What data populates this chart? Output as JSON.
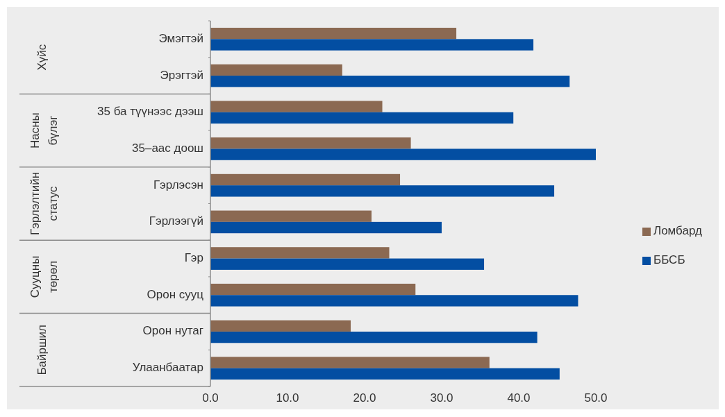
{
  "chart_data": {
    "type": "bar",
    "orientation": "horizontal",
    "categories": [
      "Эмэгтэй",
      "Эрэгтэй",
      "35 ба түүнээс дээш",
      "35–аас доош",
      "Гэрлэсэн",
      "Гэрлээгүй",
      "Гэр",
      "Орон сууц",
      "Орон нутаг",
      "Улаанбаатар"
    ],
    "series": [
      {
        "name": "Ломбард",
        "color": "#8b6952",
        "values": [
          31.9,
          17.1,
          22.3,
          26.0,
          24.6,
          20.9,
          23.2,
          26.6,
          18.2,
          36.2
        ]
      },
      {
        "name": "ББСБ",
        "color": "#034ea2",
        "values": [
          41.9,
          46.6,
          39.3,
          50.0,
          44.6,
          30.0,
          35.5,
          47.7,
          42.4,
          45.3
        ]
      }
    ],
    "annotations": [
      "Хүйс",
      "Насны бүлэг",
      "Гэрлэлтийн статус",
      "Сууцны төрөл",
      "Байршил"
    ],
    "xlim": [
      0,
      50
    ],
    "xticks": [
      {
        "value": 0,
        "label": "0.0"
      },
      {
        "value": 10,
        "label": "10.0"
      },
      {
        "value": 20,
        "label": "20.0"
      },
      {
        "value": 30,
        "label": "30.0"
      },
      {
        "value": 40,
        "label": "40.0"
      },
      {
        "value": 50,
        "label": "50.0"
      }
    ],
    "legend": "right",
    "grid": false
  }
}
